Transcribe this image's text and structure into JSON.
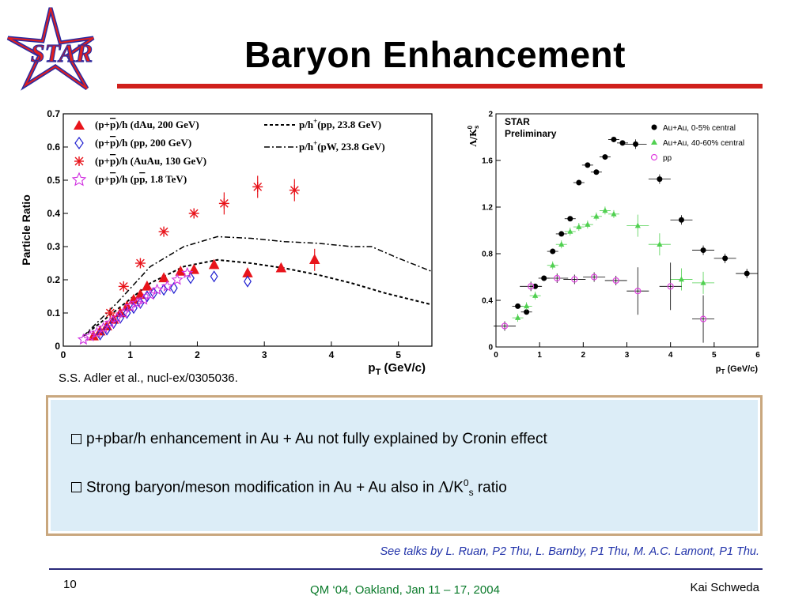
{
  "logo": {
    "text": "STAR"
  },
  "slide": {
    "title": "Baryon Enhancement",
    "citation": "S.S. Adler  et al., nucl-ex/0305036.",
    "bullets": {
      "b1": "p+pbar/h enhancement in Au + Au not fully explained by Cronin effect",
      "b2_prefix": "Strong baryon/meson modification in Au + Au also in ",
      "b2_lambda": "Λ",
      "b2_slash_k": "/K",
      "b2_sup": "0",
      "b2_sub": "s",
      "b2_suffix": " ratio"
    },
    "talks": "See talks by L. Ruan, P2 Thu, L. Barnby, P1 Thu, M. A.C. Lamont, P1 Thu.",
    "footer": {
      "page": "10",
      "conference": "QM ‘04, Oakland, Jan 11 – 17, 2004",
      "author": "Kai Schweda"
    }
  },
  "chart_data": [
    {
      "type": "scatter",
      "ylabel": "Particle Ratio",
      "xlabel_main": "p",
      "xlabel_sub": "T",
      "xlabel_unit": " (GeV/c)",
      "xlim": [
        0,
        5.5
      ],
      "ylim": [
        0,
        0.7
      ],
      "xticks": [
        "0",
        "1",
        "2",
        "3",
        "4",
        "5"
      ],
      "yticks": [
        "0",
        "0.1",
        "0.2",
        "0.3",
        "0.4",
        "0.5",
        "0.6",
        "0.7"
      ],
      "legend": [
        {
          "pre": "(p+",
          "bar": "p",
          "post": ")/h (dAu, 200 GeV)"
        },
        {
          "pre": "(p+",
          "bar": "p",
          "post": ")/h (pp, 200 GeV)"
        },
        {
          "pre": "(p+",
          "bar": "p",
          "post": ")/h (AuAu, 130 GeV)"
        },
        {
          "pre": "(p+",
          "bar": "p",
          "post": ")/h (p",
          "bar2": "p",
          "post2": ", 1.8 TeV)"
        }
      ],
      "curve_legend": [
        {
          "pre": "p/h",
          "sup": "+",
          "post": "(pp, 23.8 GeV)"
        },
        {
          "pre": "p/h",
          "sup": "+",
          "post": "(pW, 23.8 GeV)"
        }
      ],
      "series": [
        {
          "marker": "triangle",
          "color": "#e8141b",
          "x": [
            0.45,
            0.55,
            0.65,
            0.75,
            0.85,
            0.95,
            1.05,
            1.15,
            1.25,
            1.5,
            1.75,
            1.95,
            2.25,
            2.75,
            3.25,
            3.75
          ],
          "y": [
            0.03,
            0.045,
            0.06,
            0.08,
            0.1,
            0.12,
            0.14,
            0.155,
            0.18,
            0.205,
            0.225,
            0.23,
            0.245,
            0.22,
            0.235,
            0.26
          ]
        },
        {
          "marker": "diamond",
          "color": "#2020d0",
          "x": [
            0.55,
            0.65,
            0.75,
            0.85,
            0.95,
            1.05,
            1.15,
            1.25,
            1.35,
            1.5,
            1.65,
            1.9,
            2.25,
            2.75
          ],
          "y": [
            0.035,
            0.05,
            0.07,
            0.085,
            0.1,
            0.115,
            0.13,
            0.15,
            0.16,
            0.17,
            0.175,
            0.205,
            0.21,
            0.195
          ]
        },
        {
          "marker": "asterisk",
          "color": "#e8141b",
          "x": [
            0.7,
            0.9,
            1.15,
            1.5,
            1.95,
            2.4,
            2.9,
            3.45
          ],
          "y": [
            0.1,
            0.18,
            0.25,
            0.345,
            0.4,
            0.43,
            0.48,
            0.47
          ]
        },
        {
          "marker": "star",
          "color": "#d030e0",
          "x": [
            0.3,
            0.4,
            0.5,
            0.6,
            0.7,
            0.8,
            0.9,
            1.0,
            1.1,
            1.2,
            1.3,
            1.4,
            1.55,
            1.7,
            1.85
          ],
          "y": [
            0.02,
            0.03,
            0.04,
            0.055,
            0.07,
            0.085,
            0.1,
            0.12,
            0.13,
            0.14,
            0.155,
            0.17,
            0.18,
            0.2,
            0.22
          ]
        }
      ],
      "curves": [
        {
          "style": "dashed",
          "x": [
            0.3,
            0.8,
            1.3,
            1.8,
            2.3,
            2.8,
            3.3,
            3.8,
            4.3,
            4.8,
            5.5
          ],
          "y": [
            0.03,
            0.11,
            0.19,
            0.24,
            0.26,
            0.25,
            0.235,
            0.215,
            0.19,
            0.16,
            0.125
          ]
        },
        {
          "style": "dashdot",
          "x": [
            0.3,
            0.8,
            1.3,
            1.8,
            2.3,
            2.8,
            3.3,
            3.8,
            4.3,
            4.6,
            5.0,
            5.5
          ],
          "y": [
            0.03,
            0.13,
            0.24,
            0.3,
            0.33,
            0.325,
            0.315,
            0.31,
            0.3,
            0.3,
            0.265,
            0.225
          ]
        }
      ]
    },
    {
      "type": "scatter",
      "title_line1": "STAR",
      "title_line2": "Preliminary",
      "ylabel": "Λ/K",
      "ylabel_sup": "0",
      "ylabel_sub": "s",
      "xlabel_main": "p",
      "xlabel_sub": "T",
      "xlabel_unit": " (GeV/c)",
      "xlim": [
        0,
        6
      ],
      "ylim": [
        0,
        2
      ],
      "xticks": [
        "0",
        "1",
        "2",
        "3",
        "4",
        "5",
        "6"
      ],
      "yticks": [
        "0",
        "0.4",
        "0.8",
        "1.2",
        "1.6",
        "2"
      ],
      "series": [
        {
          "name": "Au+Au, 0-5% central",
          "marker": "circle",
          "color": "#000000",
          "x": [
            0.5,
            0.7,
            0.9,
            1.1,
            1.3,
            1.5,
            1.7,
            1.9,
            2.1,
            2.3,
            2.5,
            2.7,
            2.9,
            3.2,
            3.75,
            4.25,
            4.75,
            5.25,
            5.75
          ],
          "y": [
            0.35,
            0.3,
            0.52,
            0.59,
            0.82,
            0.97,
            1.1,
            1.41,
            1.56,
            1.5,
            1.63,
            1.78,
            1.75,
            1.74,
            1.44,
            1.09,
            0.83,
            0.76,
            0.63
          ]
        },
        {
          "name": "Au+Au, 40-60% central",
          "marker": "triangle",
          "color": "#50d050",
          "x": [
            0.5,
            0.7,
            0.9,
            1.3,
            1.5,
            1.7,
            1.9,
            2.1,
            2.3,
            2.5,
            2.7,
            3.25,
            3.75,
            4.25,
            4.75
          ],
          "y": [
            0.25,
            0.35,
            0.44,
            0.7,
            0.88,
            0.99,
            1.03,
            1.05,
            1.12,
            1.17,
            1.14,
            1.04,
            0.88,
            0.58,
            0.55
          ]
        },
        {
          "name": "pp",
          "marker": "circle-open",
          "color": "#e040e0",
          "x": [
            0.2,
            0.8,
            1.4,
            1.8,
            2.25,
            2.75,
            3.25,
            4.0,
            4.75
          ],
          "y": [
            0.18,
            0.52,
            0.59,
            0.58,
            0.6,
            0.57,
            0.48,
            0.52,
            0.24
          ]
        }
      ]
    }
  ]
}
